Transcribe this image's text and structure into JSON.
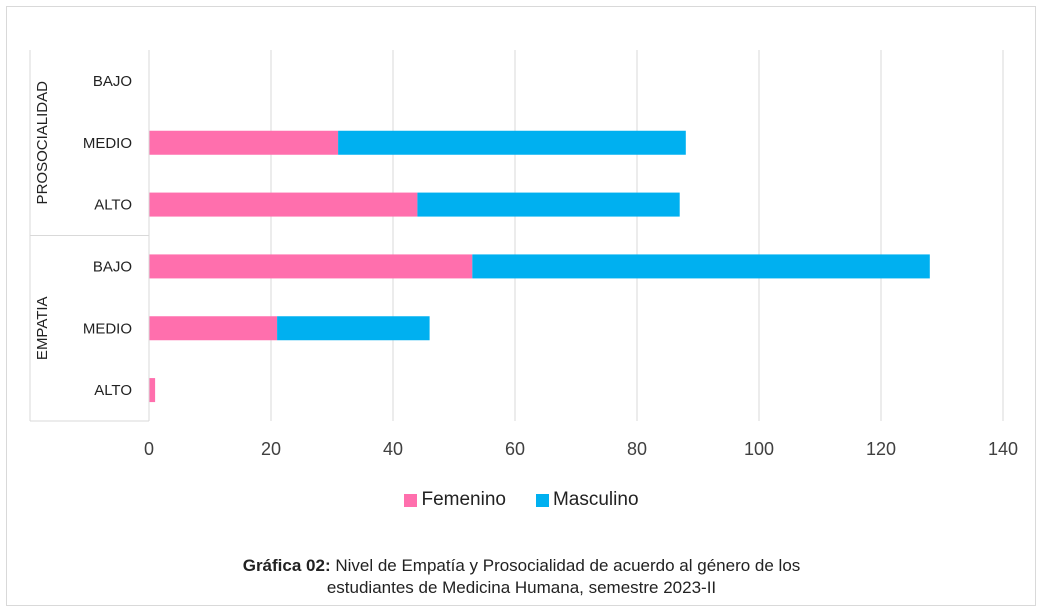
{
  "chart_data": {
    "type": "bar",
    "orientation": "horizontal",
    "stacked": true,
    "groups": [
      {
        "name": "PROSOCIALIDAD",
        "categories": [
          "BAJO",
          "MEDIO",
          "ALTO"
        ]
      },
      {
        "name": "EMPATIA",
        "categories": [
          "BAJO",
          "MEDIO",
          "ALTO"
        ]
      }
    ],
    "series": [
      {
        "name": "Femenino",
        "color": "#ff6fad",
        "values": [
          0,
          31,
          44,
          53,
          21,
          1
        ]
      },
      {
        "name": "Masculino",
        "color": "#00b0f0",
        "values": [
          0,
          57,
          43,
          75,
          25,
          0
        ]
      }
    ],
    "xlim": [
      0,
      140
    ],
    "x_ticks": [
      "0",
      "20",
      "40",
      "60",
      "80",
      "100",
      "120",
      "140"
    ],
    "grid": true,
    "legend_position": "bottom"
  },
  "caption": {
    "label": "Gráfica 02:",
    "line1": " Nivel de Empatía y Prosocialidad de acuerdo al género de los",
    "line2": "estudiantes de Medicina Humana, semestre 2023-II"
  }
}
